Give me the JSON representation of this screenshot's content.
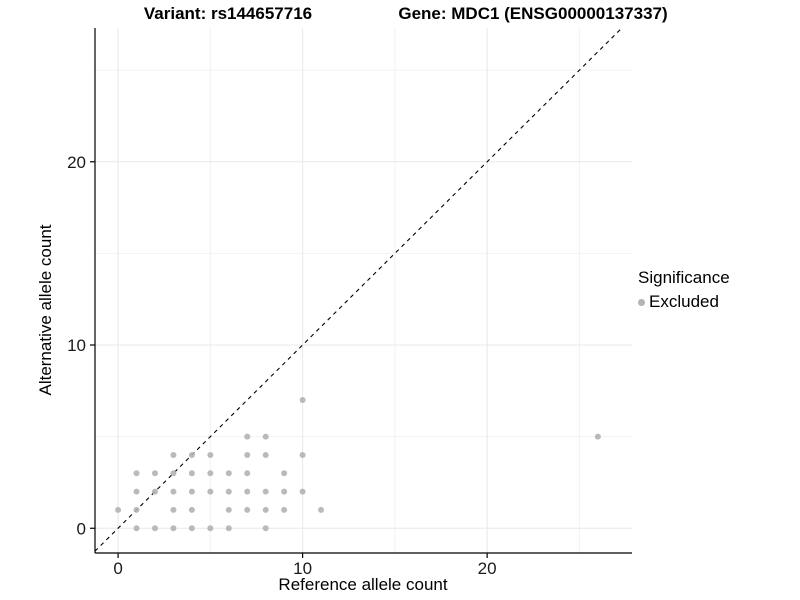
{
  "figure": {
    "title_left": "Variant: rs144657716",
    "title_right": "Gene: MDC1 (ENSG00000137337)"
  },
  "chart_data": {
    "type": "scatter",
    "title": "Variant: rs144657716 — Gene: MDC1 (ENSG00000137337)",
    "xlabel": "Reference allele count",
    "ylabel": "Alternative allele count",
    "xlim": [
      -1.25,
      27.85
    ],
    "ylim": [
      -1.35,
      27.3
    ],
    "x_ticks": [
      0,
      10,
      20
    ],
    "y_ticks": [
      0,
      10,
      20
    ],
    "x_minor_ticks": [
      5,
      15,
      25
    ],
    "y_minor_ticks": [
      5,
      15,
      25
    ],
    "grid": true,
    "legend_position": "right",
    "identity_line": {
      "style": "dashed",
      "color": "#000000",
      "from": [
        -1.25,
        -1.25
      ],
      "to": [
        27.3,
        27.3
      ]
    },
    "point_color": "#b3b3b3",
    "points": [
      [
        1,
        0
      ],
      [
        2,
        0
      ],
      [
        3,
        0
      ],
      [
        4,
        0
      ],
      [
        5,
        0
      ],
      [
        6,
        0
      ],
      [
        8,
        0
      ],
      [
        0,
        1
      ],
      [
        1,
        1
      ],
      [
        3,
        1
      ],
      [
        4,
        1
      ],
      [
        6,
        1
      ],
      [
        7,
        1
      ],
      [
        8,
        1
      ],
      [
        9,
        1
      ],
      [
        11,
        1
      ],
      [
        1,
        2
      ],
      [
        2,
        2
      ],
      [
        3,
        2
      ],
      [
        4,
        2
      ],
      [
        5,
        2
      ],
      [
        6,
        2
      ],
      [
        7,
        2
      ],
      [
        8,
        2
      ],
      [
        9,
        2
      ],
      [
        10,
        2
      ],
      [
        1,
        3
      ],
      [
        2,
        3
      ],
      [
        3,
        3
      ],
      [
        4,
        3
      ],
      [
        5,
        3
      ],
      [
        6,
        3
      ],
      [
        7,
        3
      ],
      [
        9,
        3
      ],
      [
        3,
        4
      ],
      [
        4,
        4
      ],
      [
        5,
        4
      ],
      [
        7,
        4
      ],
      [
        8,
        4
      ],
      [
        10,
        4
      ],
      [
        7,
        5
      ],
      [
        8,
        5
      ],
      [
        26,
        5
      ],
      [
        10,
        7
      ]
    ],
    "legend": {
      "title": "Significance",
      "items": [
        {
          "label": "Excluded",
          "color": "#b3b3b3",
          "marker": "circle"
        }
      ]
    },
    "colors": {
      "major_grid": "#e8e8e8",
      "minor_grid": "#f2f2f2",
      "axis_line": "#000000",
      "tick_label": "#1a1a1a"
    }
  }
}
